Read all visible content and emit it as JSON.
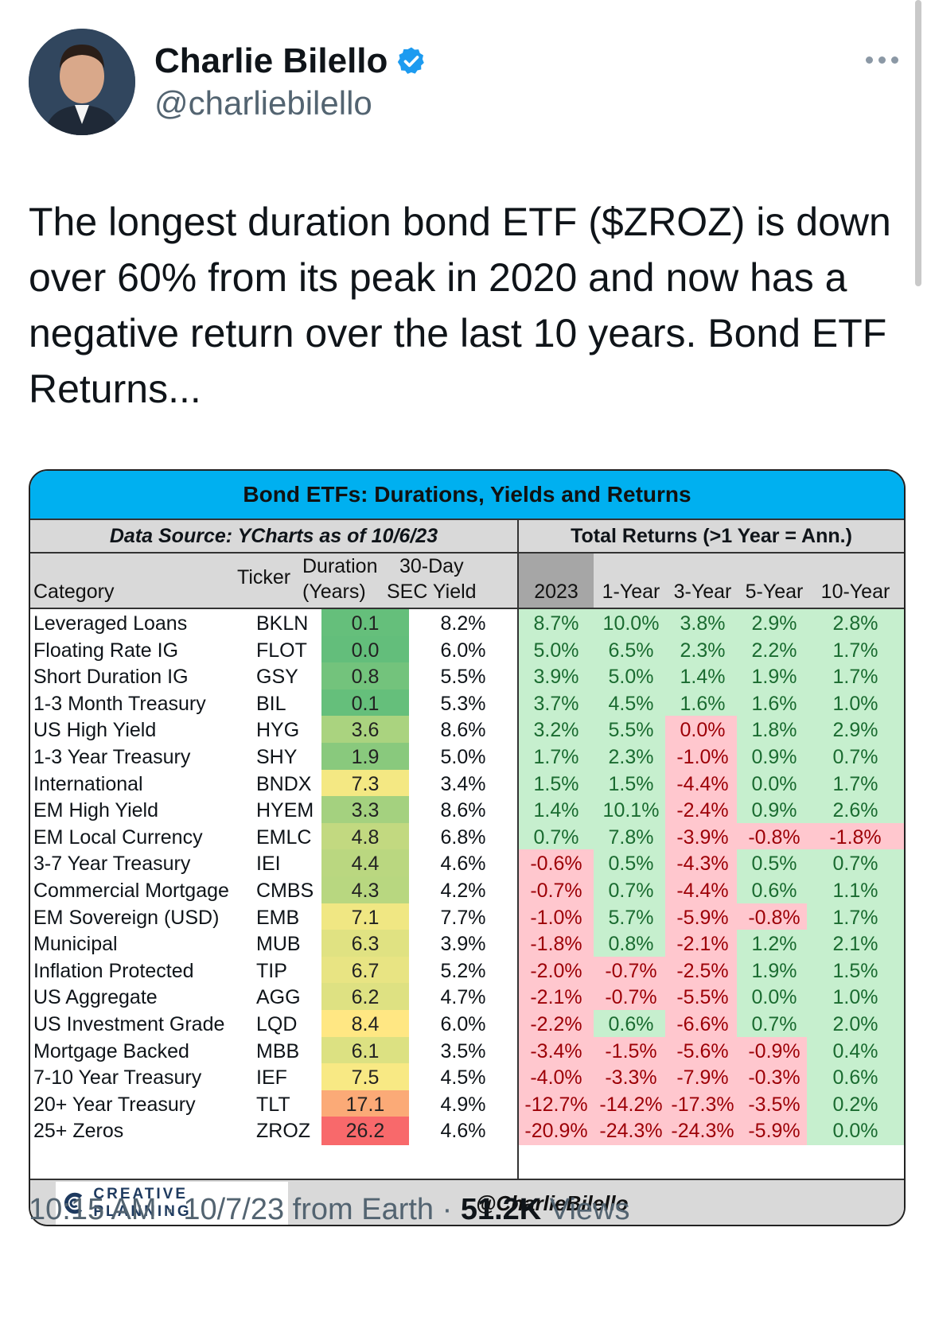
{
  "author": {
    "name": "Charlie Bilello",
    "handle": "@charliebilello",
    "verified_color": "#1d9bf0"
  },
  "tweet": {
    "text": "The longest duration bond ETF ($ZROZ) is down over 60% from its peak in 2020 and now has a negative return over the last 10 years. Bond ETF Returns..."
  },
  "card": {
    "title": "Bond ETFs: Durations, Yields and Returns",
    "source": "Data Source: YCharts as of 10/6/23",
    "returns_header": "Total Returns (>1 Year = Ann.)",
    "headers": {
      "category": "Category",
      "ticker": "Ticker",
      "duration_1": "Duration",
      "duration_2": "(Years)",
      "yield_1": "30-Day",
      "yield_2": "SEC Yield",
      "y2023": "2023",
      "y1": "1-Year",
      "y3": "3-Year",
      "y5": "5-Year",
      "y10": "10-Year"
    },
    "colors": {
      "title_bg": "#00b0f0",
      "positive": "#c6efce",
      "negative": "#ffc7ce",
      "positive_text": "#1a6b30",
      "negative_text": "#9c0006"
    },
    "rows": [
      {
        "category": "Leveraged Loans",
        "ticker": "BKLN",
        "duration": "0.1",
        "yield": "8.2%",
        "r2023": "8.7%",
        "r1": "10.0%",
        "r3": "3.8%",
        "r5": "2.9%",
        "r10": "2.8%"
      },
      {
        "category": "Floating Rate IG",
        "ticker": "FLOT",
        "duration": "0.0",
        "yield": "6.0%",
        "r2023": "5.0%",
        "r1": "6.5%",
        "r3": "2.3%",
        "r5": "2.2%",
        "r10": "1.7%"
      },
      {
        "category": "Short Duration IG",
        "ticker": "GSY",
        "duration": "0.8",
        "yield": "5.5%",
        "r2023": "3.9%",
        "r1": "5.0%",
        "r3": "1.4%",
        "r5": "1.9%",
        "r10": "1.7%"
      },
      {
        "category": "1-3 Month Treasury",
        "ticker": "BIL",
        "duration": "0.1",
        "yield": "5.3%",
        "r2023": "3.7%",
        "r1": "4.5%",
        "r3": "1.6%",
        "r5": "1.6%",
        "r10": "1.0%"
      },
      {
        "category": "US High Yield",
        "ticker": "HYG",
        "duration": "3.6",
        "yield": "8.6%",
        "r2023": "3.2%",
        "r1": "5.5%",
        "r3": "0.0%",
        "r5": "1.8%",
        "r10": "2.9%"
      },
      {
        "category": "1-3 Year Treasury",
        "ticker": "SHY",
        "duration": "1.9",
        "yield": "5.0%",
        "r2023": "1.7%",
        "r1": "2.3%",
        "r3": "-1.0%",
        "r5": "0.9%",
        "r10": "0.7%"
      },
      {
        "category": "International",
        "ticker": "BNDX",
        "duration": "7.3",
        "yield": "3.4%",
        "r2023": "1.5%",
        "r1": "1.5%",
        "r3": "-4.4%",
        "r5": "0.0%",
        "r10": "1.7%"
      },
      {
        "category": "EM High Yield",
        "ticker": "HYEM",
        "duration": "3.3",
        "yield": "8.6%",
        "r2023": "1.4%",
        "r1": "10.1%",
        "r3": "-2.4%",
        "r5": "0.9%",
        "r10": "2.6%"
      },
      {
        "category": "EM Local Currency",
        "ticker": "EMLC",
        "duration": "4.8",
        "yield": "6.8%",
        "r2023": "0.7%",
        "r1": "7.8%",
        "r3": "-3.9%",
        "r5": "-0.8%",
        "r10": "-1.8%"
      },
      {
        "category": "3-7 Year Treasury",
        "ticker": "IEI",
        "duration": "4.4",
        "yield": "4.6%",
        "r2023": "-0.6%",
        "r1": "0.5%",
        "r3": "-4.3%",
        "r5": "0.5%",
        "r10": "0.7%"
      },
      {
        "category": "Commercial Mortgage",
        "ticker": "CMBS",
        "duration": "4.3",
        "yield": "4.2%",
        "r2023": "-0.7%",
        "r1": "0.7%",
        "r3": "-4.4%",
        "r5": "0.6%",
        "r10": "1.1%"
      },
      {
        "category": "EM Sovereign (USD)",
        "ticker": "EMB",
        "duration": "7.1",
        "yield": "7.7%",
        "r2023": "-1.0%",
        "r1": "5.7%",
        "r3": "-5.9%",
        "r5": "-0.8%",
        "r10": "1.7%"
      },
      {
        "category": "Municipal",
        "ticker": "MUB",
        "duration": "6.3",
        "yield": "3.9%",
        "r2023": "-1.8%",
        "r1": "0.8%",
        "r3": "-2.1%",
        "r5": "1.2%",
        "r10": "2.1%"
      },
      {
        "category": "Inflation Protected",
        "ticker": "TIP",
        "duration": "6.7",
        "yield": "5.2%",
        "r2023": "-2.0%",
        "r1": "-0.7%",
        "r3": "-2.5%",
        "r5": "1.9%",
        "r10": "1.5%"
      },
      {
        "category": "US Aggregate",
        "ticker": "AGG",
        "duration": "6.2",
        "yield": "4.7%",
        "r2023": "-2.1%",
        "r1": "-0.7%",
        "r3": "-5.5%",
        "r5": "0.0%",
        "r10": "1.0%"
      },
      {
        "category": "US Investment Grade",
        "ticker": "LQD",
        "duration": "8.4",
        "yield": "6.0%",
        "r2023": "-2.2%",
        "r1": "0.6%",
        "r3": "-6.6%",
        "r5": "0.7%",
        "r10": "2.0%"
      },
      {
        "category": "Mortgage Backed",
        "ticker": "MBB",
        "duration": "6.1",
        "yield": "3.5%",
        "r2023": "-3.4%",
        "r1": "-1.5%",
        "r3": "-5.6%",
        "r5": "-0.9%",
        "r10": "0.4%"
      },
      {
        "category": "7-10 Year Treasury",
        "ticker": "IEF",
        "duration": "7.5",
        "yield": "4.5%",
        "r2023": "-4.0%",
        "r1": "-3.3%",
        "r3": "-7.9%",
        "r5": "-0.3%",
        "r10": "0.6%"
      },
      {
        "category": "20+ Year Treasury",
        "ticker": "TLT",
        "duration": "17.1",
        "yield": "4.9%",
        "r2023": "-12.7%",
        "r1": "-14.2%",
        "r3": "-17.3%",
        "r5": "-3.5%",
        "r10": "0.2%"
      },
      {
        "category": "25+ Zeros",
        "ticker": "ZROZ",
        "duration": "26.2",
        "yield": "4.6%",
        "r2023": "-20.9%",
        "r1": "-24.3%",
        "r3": "-24.3%",
        "r5": "-5.9%",
        "r10": "0.0%"
      }
    ],
    "footer_logo": "CREATIVE PLANNING",
    "footer_handle": "@CharlieBilello"
  },
  "meta": {
    "time": "10:15 AM · 10/7/23 from Earth · ",
    "views_count": "51.2K",
    "views_label": " Views"
  }
}
